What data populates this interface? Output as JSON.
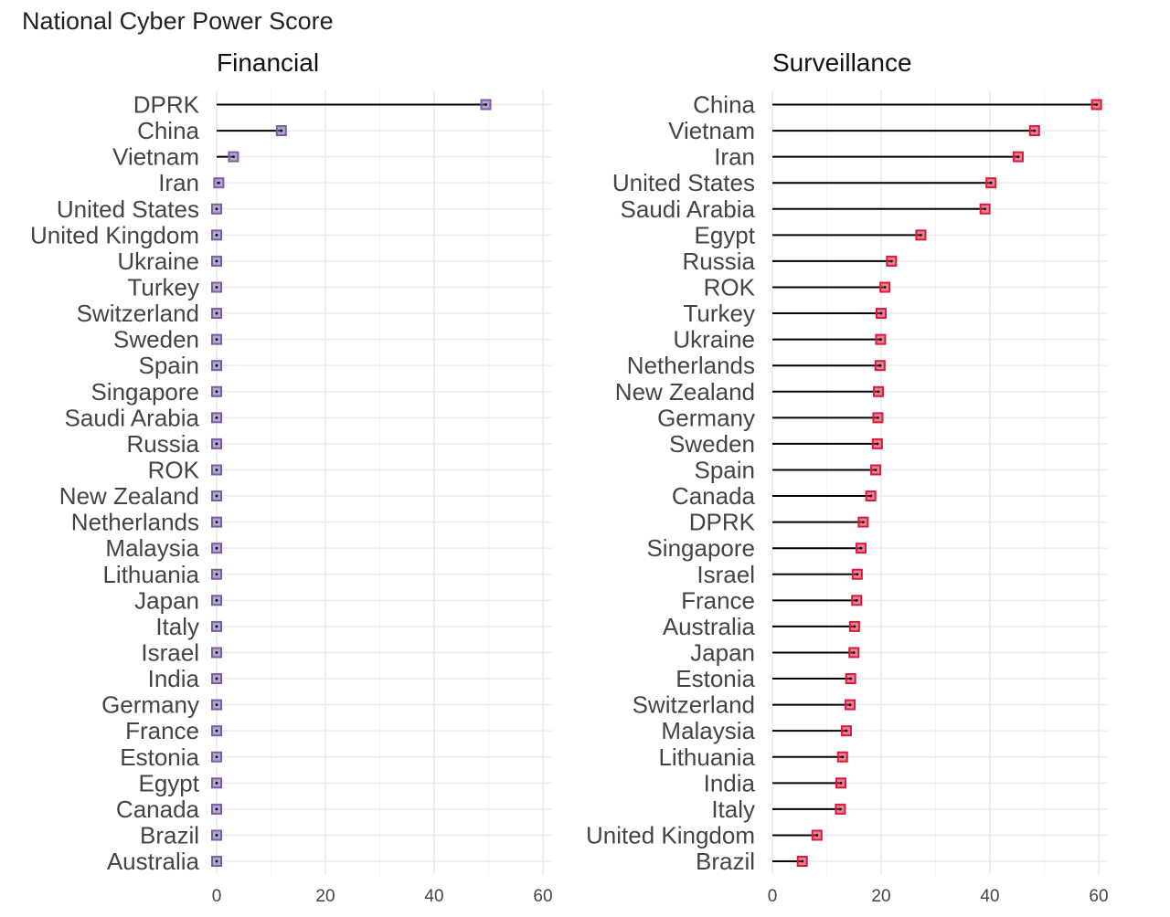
{
  "page_title": "National Cyber Power Score",
  "chart_data": [
    {
      "type": "lollipop",
      "title": "Financial",
      "xlim": [
        0,
        60
      ],
      "xticks": [
        0,
        20,
        40,
        60
      ],
      "grid": true,
      "color": "#7b5ea7",
      "categories": [
        "DPRK",
        "China",
        "Vietnam",
        "Iran",
        "United States",
        "United Kingdom",
        "Ukraine",
        "Turkey",
        "Switzerland",
        "Sweden",
        "Spain",
        "Singapore",
        "Saudi Arabia",
        "Russia",
        "ROK",
        "New Zealand",
        "Netherlands",
        "Malaysia",
        "Lithuania",
        "Japan",
        "Italy",
        "Israel",
        "India",
        "Germany",
        "France",
        "Estonia",
        "Egypt",
        "Canada",
        "Brazil",
        "Australia"
      ],
      "values": [
        49.5,
        11.9,
        3.1,
        0.4,
        0,
        0,
        0,
        0,
        0,
        0,
        0,
        0,
        0,
        0,
        0,
        0,
        0,
        0,
        0,
        0,
        0,
        0,
        0,
        0,
        0,
        0,
        0,
        0,
        0,
        0
      ]
    },
    {
      "type": "lollipop",
      "title": "Surveillance",
      "xlim": [
        0,
        60
      ],
      "xticks": [
        0,
        20,
        40,
        60
      ],
      "grid": true,
      "color": "#d81b3c",
      "categories": [
        "China",
        "Vietnam",
        "Iran",
        "United States",
        "Saudi Arabia",
        "Egypt",
        "Russia",
        "ROK",
        "Turkey",
        "Ukraine",
        "Netherlands",
        "New Zealand",
        "Germany",
        "Sweden",
        "Spain",
        "Canada",
        "DPRK",
        "Singapore",
        "Israel",
        "France",
        "Australia",
        "Japan",
        "Estonia",
        "Switzerland",
        "Malaysia",
        "Lithuania",
        "India",
        "Italy",
        "United Kingdom",
        "Brazil"
      ],
      "values": [
        59.6,
        48.2,
        45.2,
        40.2,
        39.1,
        27.3,
        21.9,
        20.7,
        20.0,
        19.9,
        19.8,
        19.5,
        19.4,
        19.3,
        19.0,
        18.1,
        16.7,
        16.3,
        15.6,
        15.5,
        15.1,
        15.0,
        14.4,
        14.3,
        13.6,
        12.9,
        12.6,
        12.5,
        8.2,
        5.5
      ]
    }
  ]
}
